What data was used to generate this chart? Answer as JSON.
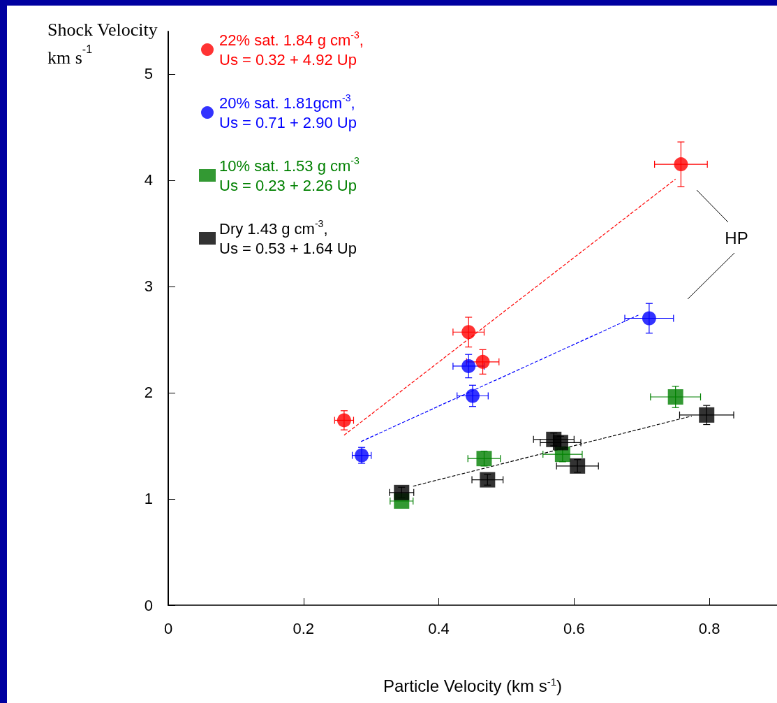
{
  "chart_data": {
    "type": "scatter",
    "ylabel": "Shock Velocity\nkm s$^{-1}$",
    "xlabel": "Particle Velocity (km s$^{-1}$)",
    "xlim": [
      0,
      0.9
    ],
    "xticks": [
      0,
      0.2,
      0.4,
      0.6,
      0.8
    ],
    "ylim": [
      0,
      5.4
    ],
    "yticks": [
      0,
      1,
      2,
      3,
      4,
      5
    ],
    "grid": false,
    "legend": "top left",
    "annotations": [
      "HP"
    ],
    "series": [
      {
        "name": "22% sat. 1.84 g cm$^{-3}$,\nUs = 0.32 + 4.92 Up",
        "color": "#ff0000",
        "marker": "circle",
        "x": [
          0.26,
          0.444,
          0.465,
          0.758
        ],
        "values": [
          1.74,
          2.57,
          2.29,
          4.15
        ],
        "errors": [
          0.09,
          0.14,
          0.115,
          0.21
        ],
        "xerrors": [
          0.014,
          0.023,
          0.024,
          0.039
        ]
      },
      {
        "name": "20% sat. 1.81gcm$^{-3}$,\nUs = 0.71 + 2.90 Up",
        "color": "#0000ff",
        "marker": "circle",
        "x": [
          0.286,
          0.444,
          0.45,
          0.711
        ],
        "values": [
          1.41,
          2.25,
          1.97,
          2.7
        ],
        "errors": [
          0.075,
          0.11,
          0.1,
          0.14
        ],
        "xerrors": [
          0.014,
          0.023,
          0.023,
          0.036
        ]
      },
      {
        "name": "10% sat. 1.53 g cm$^{-3}$\nUs = 0.23 + 2.26 Up",
        "color": "#008000",
        "marker": "square",
        "x": [
          0.345,
          0.467,
          0.583,
          0.75
        ],
        "values": [
          0.98,
          1.38,
          1.42,
          1.96
        ],
        "errors": [
          null,
          0.07,
          0.07,
          0.1
        ],
        "xerrors": [
          0.017,
          0.024,
          0.029,
          0.037
        ]
      },
      {
        "name": "Dry 1.43 g cm$^{-3}$,\nUs = 0.53 + 1.64 Up",
        "color": "#000000",
        "marker": "square",
        "x": [
          0.345,
          0.472,
          0.57,
          0.58,
          0.605,
          0.796
        ],
        "values": [
          1.06,
          1.18,
          1.56,
          1.53,
          1.31,
          1.79
        ],
        "errors": [
          0.05,
          0.05,
          0.06,
          0.06,
          0.06,
          0.09
        ],
        "xerrors": [
          0.018,
          0.023,
          0.03,
          0.03,
          0.031,
          0.04
        ]
      },
      {
        "type": "line",
        "color": "#ff0000",
        "line_style": "dashed",
        "marker": "none",
        "x": [
          0.26,
          0.75
        ],
        "values": [
          1.6,
          4.01
        ]
      },
      {
        "type": "line",
        "color": "#0000ff",
        "line_style": "dashed",
        "marker": "none",
        "x": [
          0.285,
          0.695
        ],
        "values": [
          1.54,
          2.73
        ]
      },
      {
        "type": "line",
        "color": "#000000",
        "line_style": "dashed",
        "marker": "none",
        "x": [
          0.362,
          0.774
        ],
        "values": [
          1.12,
          1.78
        ]
      }
    ]
  }
}
